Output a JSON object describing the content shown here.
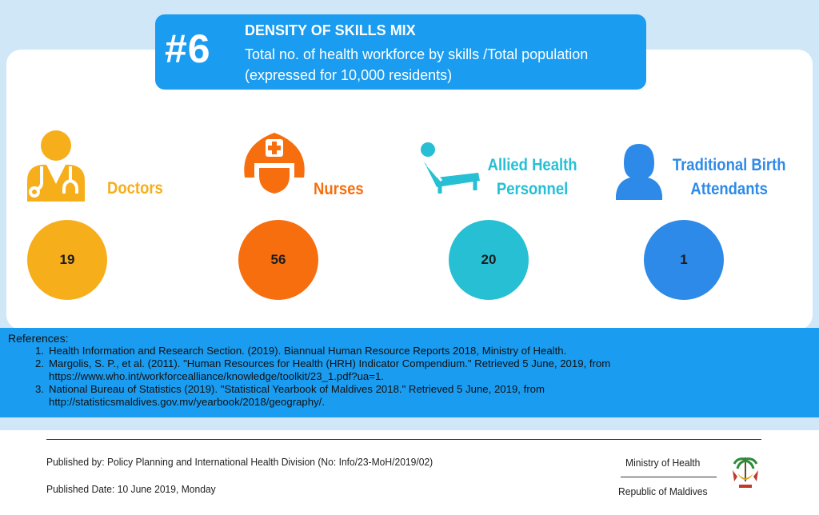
{
  "banner": {
    "number": "#6",
    "title": "DENSITY OF SKILLS MIX",
    "subtitle": "Total no. of health workforce by skills /Total population (expressed for 10,000 residents)"
  },
  "categories": [
    {
      "label": "Doctors",
      "value": "19",
      "color": "#f7ae1b",
      "icon": "doctor-icon"
    },
    {
      "label": "Nurses",
      "value": "56",
      "color": "#f76e0f",
      "icon": "nurse-icon"
    },
    {
      "label": "Allied Health Personnel",
      "value": "20",
      "color": "#26bfd4",
      "icon": "patient-bed-icon"
    },
    {
      "label": "Traditional Birth Attendants",
      "value": "1",
      "color": "#2e8ae8",
      "icon": "person-silhouette-icon"
    }
  ],
  "references": {
    "heading": "References:",
    "items": [
      {
        "num": "1.",
        "text": "Health Information and Research Section. (2019). Biannual Human Resource Reports 2018, Ministry of Health."
      },
      {
        "num": "2.",
        "text": "Margolis, S. P., et al. (2011). \"Human Resources for Health (HRH) Indicator Compendium.\" Retrieved 5 June, 2019, from https://www.who.int/workforcealliance/knowledge/toolkit/23_1.pdf?ua=1."
      },
      {
        "num": "3.",
        "text": "National Bureau of Statistics (2019). \"Statistical Yearbook of Maldives 2018.\" Retrieved 5 June, 2019, from http://statisticsmaldives.gov.mv/yearbook/2018/geography/."
      }
    ]
  },
  "footer": {
    "published_by": "Published by: Policy Planning and International Health Division (No: Info/23-MoH/2019/02)",
    "published_date": "Published Date: 10 June 2019, Monday",
    "ministry": "Ministry of Health",
    "republic": "Republic of Maldives"
  }
}
